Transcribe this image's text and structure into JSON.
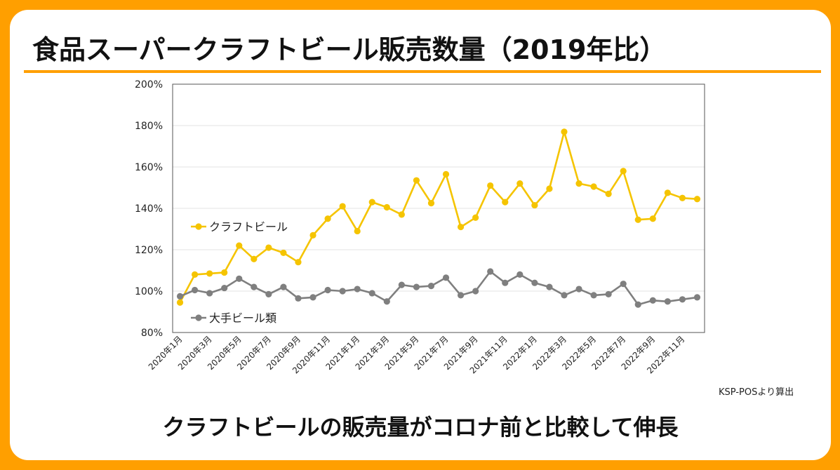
{
  "title": "食品スーパークラフトビール販売数量（2019年比）",
  "source_note": "KSP-POSより算出",
  "subtitle": "クラフトビールの販売量がコロナ前と比較して伸長",
  "colors": {
    "background": "#ff9f00",
    "craft": "#f5c400",
    "major": "#7f7f7f",
    "rule": "#ff9f00"
  },
  "chart_data": {
    "type": "line",
    "title": "",
    "xlabel": "",
    "ylabel": "",
    "ylim": [
      80,
      200
    ],
    "yticks": [
      "80%",
      "100%",
      "120%",
      "140%",
      "160%",
      "180%",
      "200%"
    ],
    "y_tick_values": [
      80,
      100,
      120,
      140,
      160,
      180,
      200
    ],
    "grid": true,
    "x_tick_labels": [
      "2020年1月",
      "2020年3月",
      "2020年5月",
      "2020年7月",
      "2020年9月",
      "2020年11月",
      "2021年1月",
      "2021年3月",
      "2021年5月",
      "2021年7月",
      "2021年9月",
      "2021年11月",
      "2022年1月",
      "2022年3月",
      "2022年5月",
      "2022年7月",
      "2022年9月",
      "2022年11月"
    ],
    "x_tick_every": 2,
    "series": [
      {
        "name": "クラフトビール",
        "color": "#f5c400",
        "values": [
          94.5,
          108,
          108.5,
          109,
          122,
          115.5,
          121,
          118.5,
          114,
          127,
          135,
          141,
          129,
          143,
          140.5,
          137,
          153.5,
          142.5,
          156.5,
          131,
          135.5,
          151,
          143,
          152,
          141.5,
          149.5,
          177,
          152,
          150.5,
          147,
          158,
          134.5,
          135,
          147.5,
          145,
          144.5
        ]
      },
      {
        "name": "大手ビール類",
        "color": "#7f7f7f",
        "values": [
          97.5,
          100.5,
          99,
          101.5,
          106,
          102,
          98.5,
          102,
          96.5,
          97,
          100.5,
          100,
          101,
          99,
          95,
          103,
          102,
          102.5,
          106.5,
          98,
          100,
          109.5,
          104,
          108,
          104,
          102,
          98,
          101,
          98,
          98.5,
          103.5,
          93.5,
          95.5,
          95,
          96,
          97
        ]
      }
    ]
  }
}
